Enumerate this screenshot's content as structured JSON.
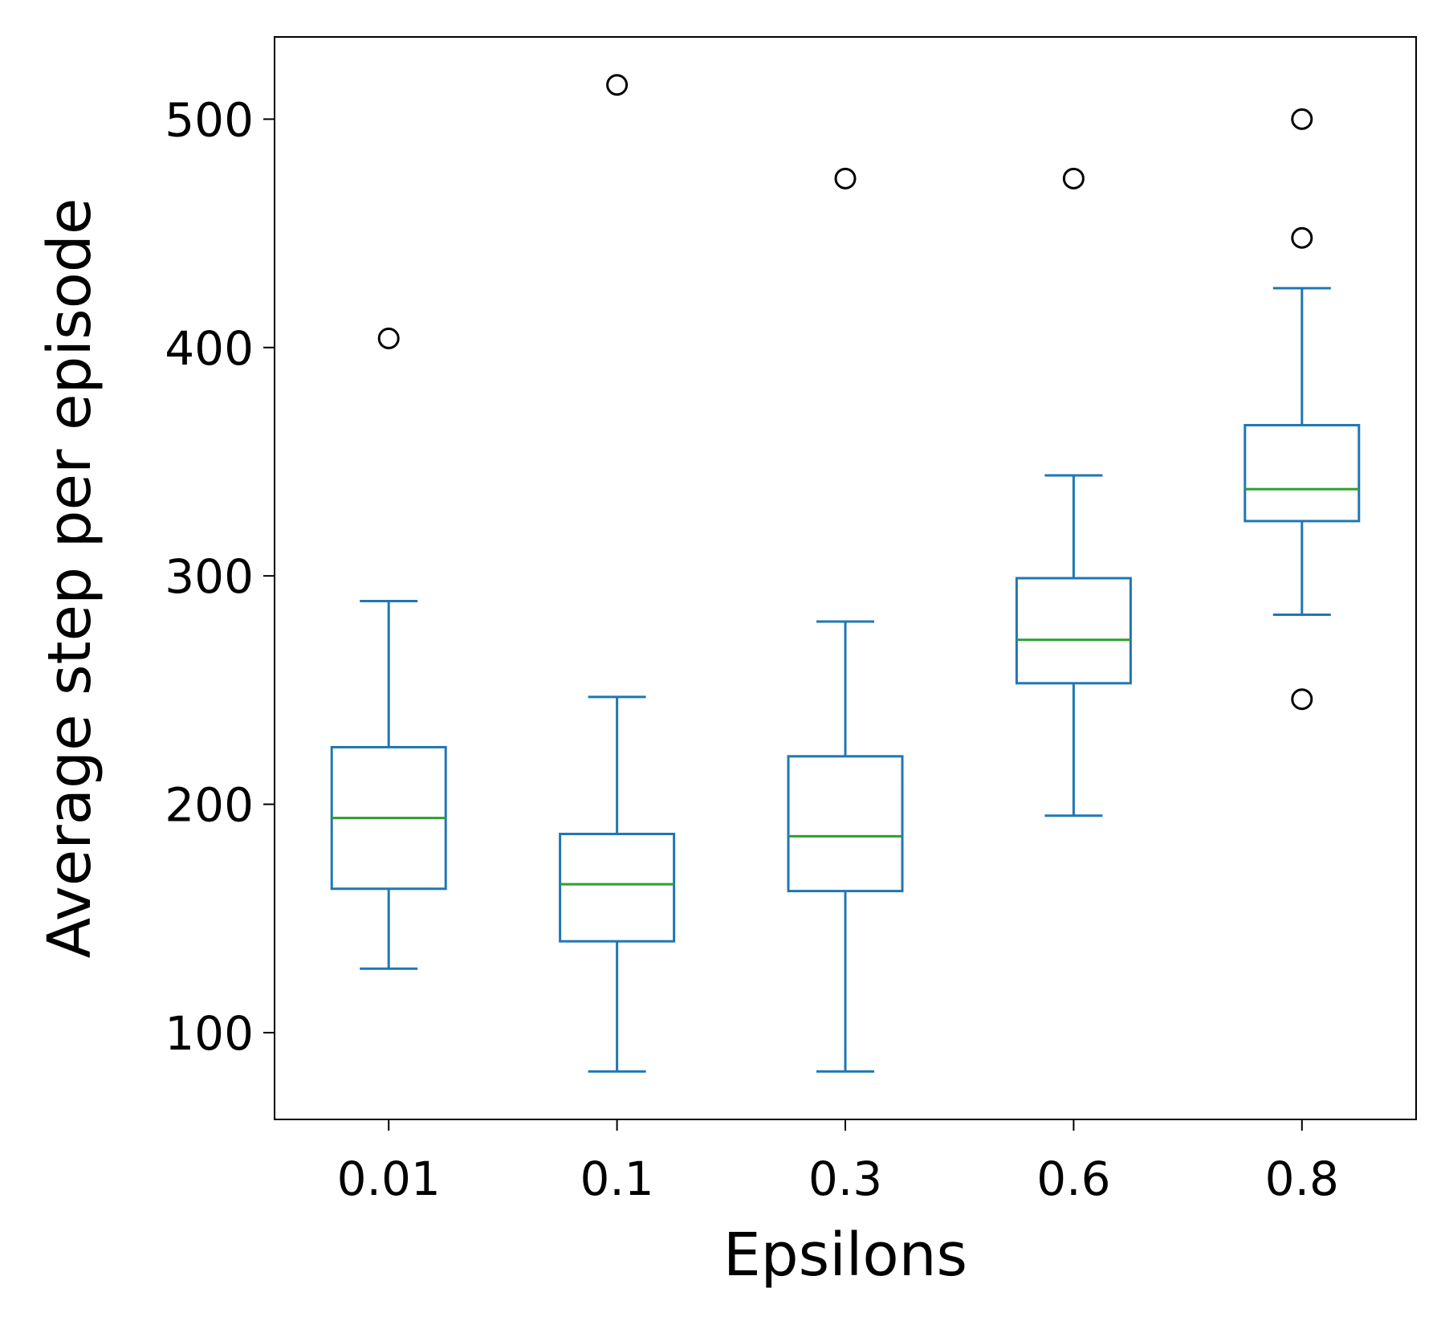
{
  "chart_data": {
    "type": "box",
    "xlabel": "Epsilons",
    "ylabel": "Average step per episode",
    "ylim": [
      62,
      536
    ],
    "yticks": [
      100,
      200,
      300,
      400,
      500
    ],
    "categories": [
      "0.01",
      "0.1",
      "0.3",
      "0.6",
      "0.8"
    ],
    "boxes": [
      {
        "category": "0.01",
        "whisker_low": 128,
        "q1": 163,
        "median": 194,
        "q3": 225,
        "whisker_high": 289,
        "outliers": [
          404
        ]
      },
      {
        "category": "0.1",
        "whisker_low": 83,
        "q1": 140,
        "median": 165,
        "q3": 187,
        "whisker_high": 247,
        "outliers": [
          515
        ]
      },
      {
        "category": "0.3",
        "whisker_low": 83,
        "q1": 162,
        "median": 186,
        "q3": 221,
        "whisker_high": 280,
        "outliers": [
          474
        ]
      },
      {
        "category": "0.6",
        "whisker_low": 195,
        "q1": 253,
        "median": 272,
        "q3": 299,
        "whisker_high": 344,
        "outliers": [
          474
        ]
      },
      {
        "category": "0.8",
        "whisker_low": 283,
        "q1": 324,
        "median": 338,
        "q3": 366,
        "whisker_high": 426,
        "outliers": [
          500,
          448,
          246
        ]
      }
    ],
    "colors": {
      "box": "#1f77b4",
      "median": "#2ca02c",
      "outlier": "#000000",
      "frame": "#000000"
    },
    "grid": false
  }
}
